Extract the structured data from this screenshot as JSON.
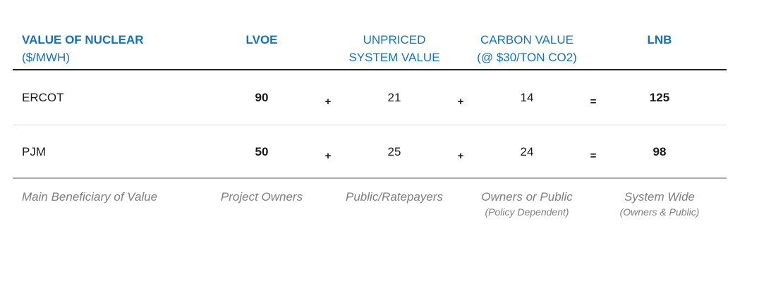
{
  "header": {
    "row_label_title": {
      "line1": "VALUE OF NUCLEAR",
      "line2": "($/MWH)"
    },
    "columns": [
      {
        "line1": "LVOE"
      },
      {
        "line1": "UNPRICED",
        "line2": "SYSTEM VALUE"
      },
      {
        "line1": "CARBON VALUE",
        "line2": "(@ $30/TON CO2)"
      },
      {
        "line1": "LNB"
      }
    ]
  },
  "operators": {
    "plus": "+",
    "equals": "="
  },
  "rows": [
    {
      "label": "ERCOT",
      "values": [
        "90",
        "21",
        "14",
        "125"
      ]
    },
    {
      "label": "PJM",
      "values": [
        "50",
        "25",
        "24",
        "98"
      ]
    }
  ],
  "footer": {
    "label": "Main Beneficiary of Value",
    "cells": [
      {
        "main": "Project Owners"
      },
      {
        "main": "Public/Ratepayers"
      },
      {
        "main": "Owners or Public",
        "sub": "(Policy Dependent)"
      },
      {
        "main": "System Wide",
        "sub": "(Owners & Public)"
      }
    ]
  },
  "colors": {
    "accent_blue": "#1473B8",
    "text_black": "#1A1A1A",
    "muted_gray": "#7E7E7E",
    "rule_dark": "#1F1F1F",
    "rule_light": "#DCDCDC",
    "rule_medium": "#ABABAB"
  },
  "chart_data": {
    "type": "table",
    "title": "VALUE OF NUCLEAR ($/MWH)",
    "columns": [
      "LVOE",
      "UNPRICED SYSTEM VALUE",
      "CARBON VALUE (@ $30/TON CO2)",
      "LNB"
    ],
    "rows": [
      {
        "region": "ERCOT",
        "lvoe": 90,
        "unpriced_system_value": 21,
        "carbon_value": 14,
        "lnb": 125
      },
      {
        "region": "PJM",
        "lvoe": 50,
        "unpriced_system_value": 25,
        "carbon_value": 24,
        "lnb": 98
      }
    ],
    "formula": "LVOE + UNPRICED SYSTEM VALUE + CARBON VALUE = LNB",
    "main_beneficiary_of_value": [
      "Project Owners",
      "Public/Ratepayers",
      "Owners or Public (Policy Dependent)",
      "System Wide (Owners & Public)"
    ]
  }
}
